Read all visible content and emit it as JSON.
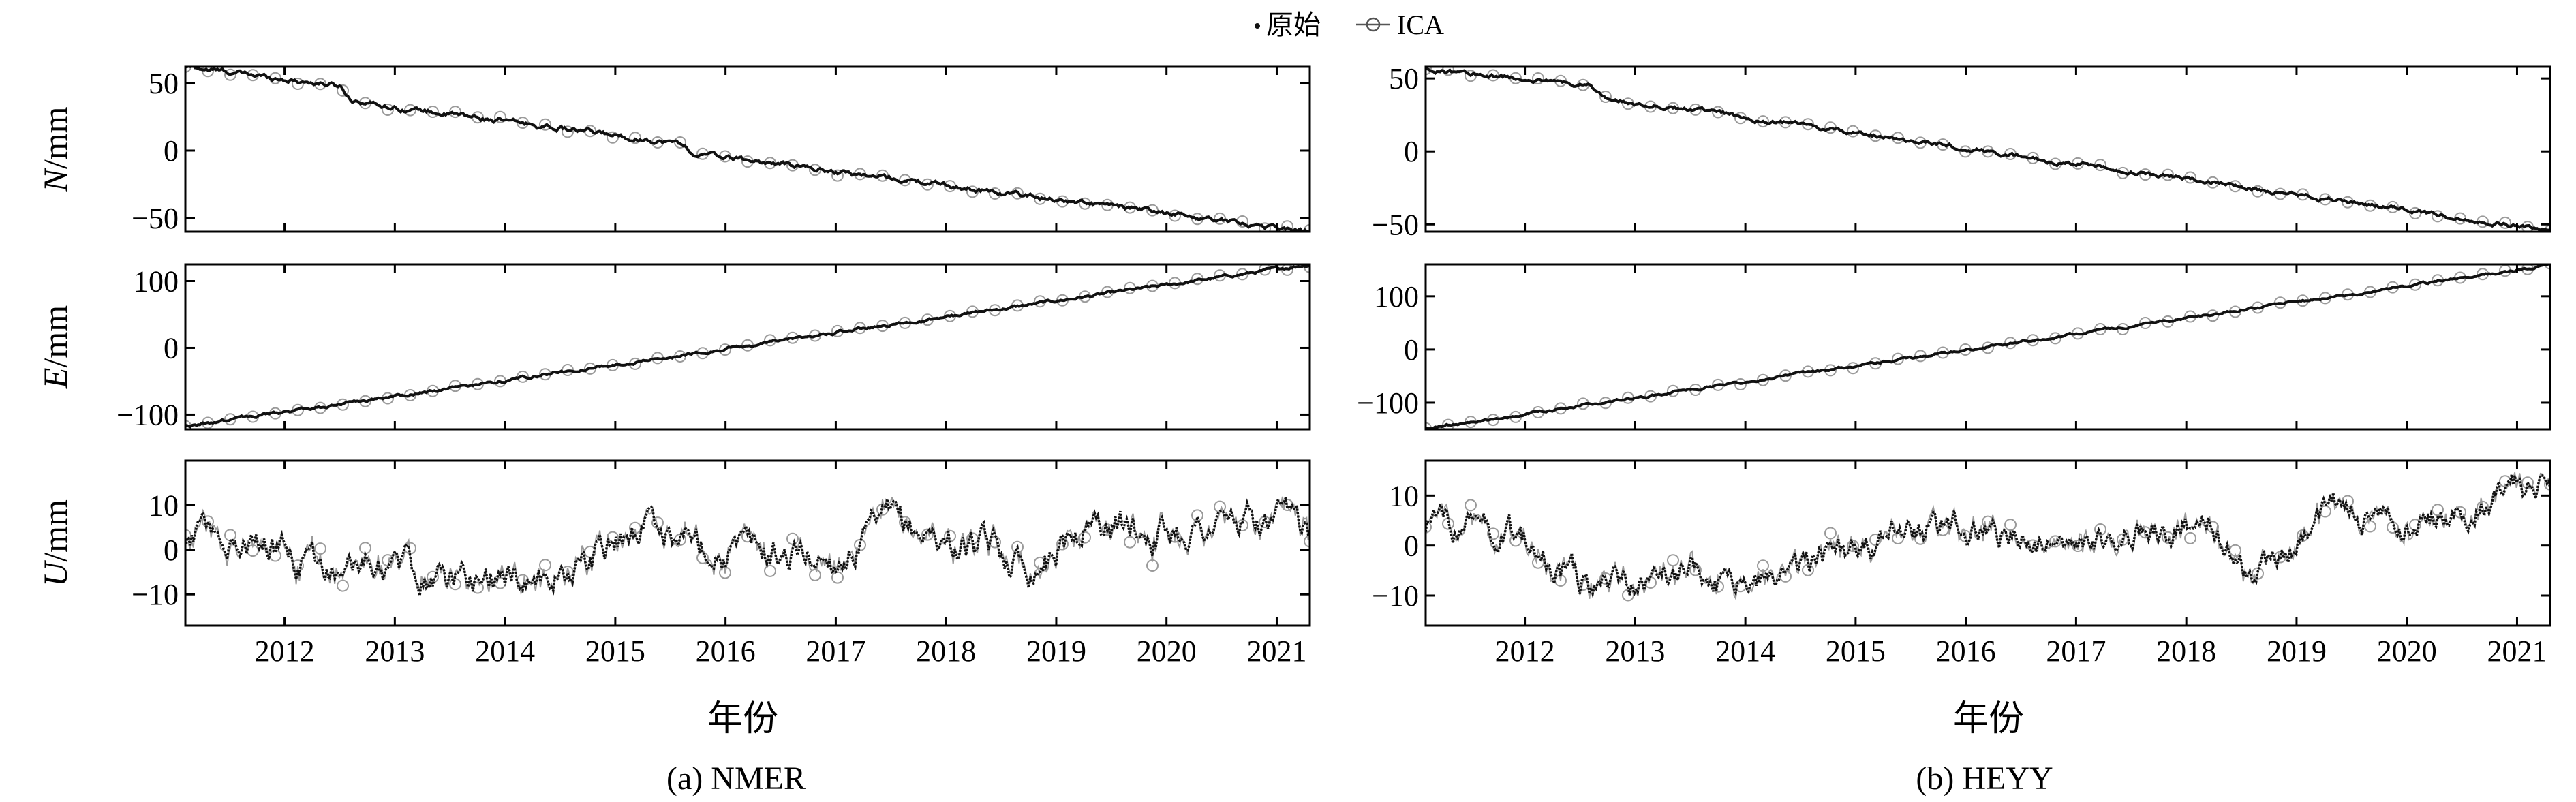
{
  "legend": {
    "raw_label": "原始",
    "ica_label": "ICA"
  },
  "xlabel": "年份",
  "colors": {
    "raw": "#111111",
    "ica": "#9a9a9a",
    "axis": "#000000"
  },
  "panels": [
    {
      "caption": "(a) NMER"
    },
    {
      "caption": "(b) HEYY"
    }
  ],
  "chart_data": [
    {
      "type": "line",
      "station": "NMER",
      "x_range": [
        2011.1,
        2021.3
      ],
      "x_ticks": [
        2012,
        2013,
        2014,
        2015,
        2016,
        2017,
        2018,
        2019,
        2020,
        2021
      ],
      "xlabel": "年份",
      "legend": [
        "原始",
        "ICA"
      ],
      "legend_position": "top-center",
      "grid": false,
      "series": [
        {
          "component": "N",
          "ylabel": "N/mm",
          "ylim": [
            -60,
            62
          ],
          "yticks": [
            50,
            0,
            -50
          ],
          "trend": {
            "x": [
              2011.1,
              2012.5,
              2012.6,
              2013.0,
              2015.6,
              2015.7,
              2021.3
            ],
            "y": [
              62,
              48,
              38,
              32,
              5,
              -2,
              -60
            ]
          },
          "noise_amplitude": 2.5
        },
        {
          "component": "E",
          "ylabel": "E/mm",
          "ylim": [
            -122,
            125
          ],
          "yticks": [
            100,
            0,
            -100
          ],
          "trend": {
            "x": [
              2011.1,
              2021.3
            ],
            "y": [
              -118,
              125
            ]
          },
          "noise_amplitude": 3
        },
        {
          "component": "U",
          "ylabel": "U/mm",
          "ylim": [
            -17,
            20
          ],
          "yticks": [
            10,
            0,
            -10
          ],
          "trend": {
            "x": [
              2011.1,
              2012.5,
              2013.5,
              2014.5,
              2015.3,
              2016.0,
              2017.0,
              2017.5,
              2018.0,
              2018.8,
              2019.3,
              2020.0,
              2020.5,
              2021.3
            ],
            "y": [
              3,
              -2,
              -6,
              -6,
              6,
              0,
              -2,
              6,
              2,
              -3,
              6,
              4,
              6,
              5
            ]
          },
          "noise_amplitude": 5
        }
      ]
    },
    {
      "type": "line",
      "station": "HEYY",
      "x_range": [
        2011.1,
        2021.3
      ],
      "x_ticks": [
        2012,
        2013,
        2014,
        2015,
        2016,
        2017,
        2018,
        2019,
        2020,
        2021
      ],
      "xlabel": "年份",
      "legend": [
        "原始",
        "ICA"
      ],
      "legend_position": "top-center",
      "grid": false,
      "series": [
        {
          "component": "N",
          "ylabel": "N/mm",
          "ylim": [
            -55,
            58
          ],
          "yticks": [
            50,
            0,
            -50
          ],
          "trend": {
            "x": [
              2011.1,
              2012.6,
              2012.7,
              2021.3
            ],
            "y": [
              56,
              45,
              37,
              -54
            ]
          },
          "noise_amplitude": 2
        },
        {
          "component": "E",
          "ylabel": "E/mm",
          "ylim": [
            -150,
            160
          ],
          "yticks": [
            100,
            0,
            -100
          ],
          "trend": {
            "x": [
              2011.1,
              2021.3
            ],
            "y": [
              -148,
              158
            ]
          },
          "noise_amplitude": 3
        },
        {
          "component": "U",
          "ylabel": "U/mm",
          "ylim": [
            -16,
            17
          ],
          "yticks": [
            10,
            0,
            -10
          ],
          "trend": {
            "x": [
              2011.1,
              2011.8,
              2012.6,
              2013.5,
              2014.3,
              2015.5,
              2016.2,
              2017.0,
              2018.2,
              2018.6,
              2019.3,
              2020.0,
              2020.7,
              2021.3
            ],
            "y": [
              4,
              3,
              -8,
              -6,
              -8,
              4,
              3,
              -2,
              6,
              -8,
              8,
              4,
              10,
              13
            ]
          },
          "noise_amplitude": 4
        }
      ]
    }
  ]
}
